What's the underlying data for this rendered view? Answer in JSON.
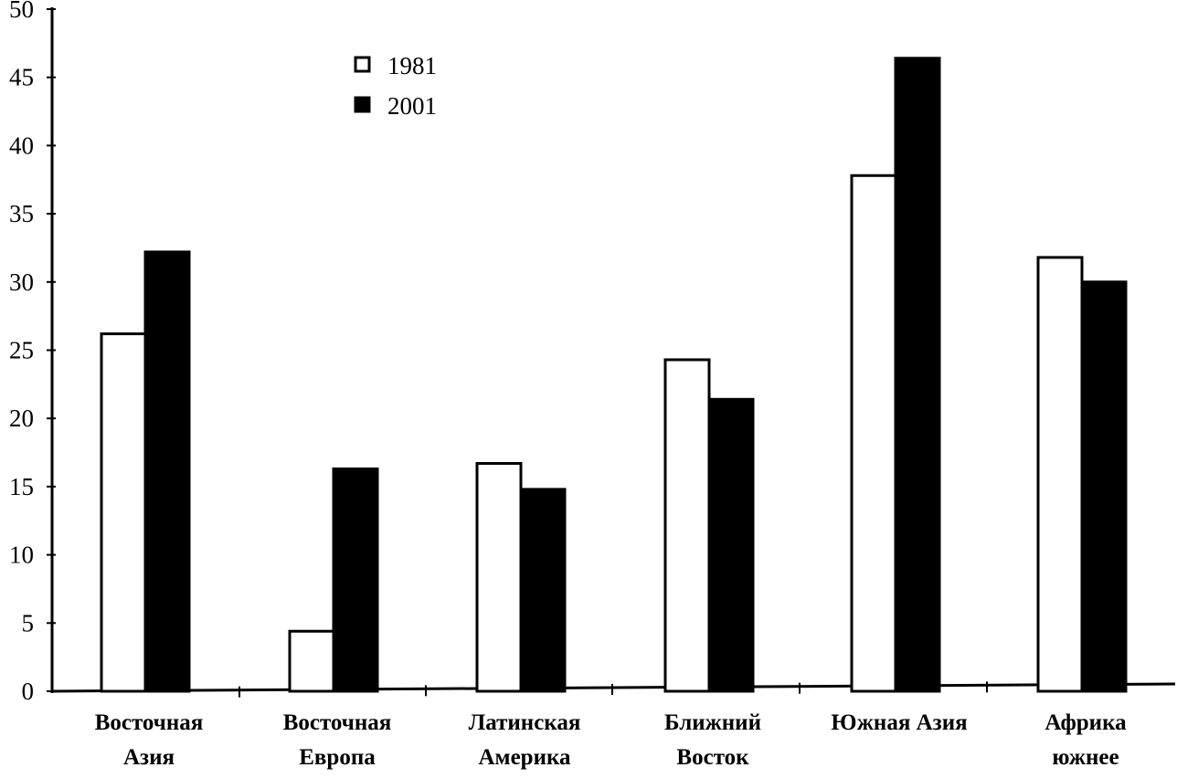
{
  "chart_data": {
    "type": "bar",
    "title": "",
    "xlabel": "",
    "ylabel": "",
    "ylim": [
      0,
      50
    ],
    "yticks": [
      "0",
      "5",
      "10",
      "15",
      "20",
      "25",
      "30",
      "35",
      "40",
      "45",
      "50"
    ],
    "categories": [
      [
        "Восточная",
        "Азия"
      ],
      [
        "Восточная",
        "Европа"
      ],
      [
        "Латинская",
        "Америка"
      ],
      [
        "Ближний",
        "Восток"
      ],
      [
        "Южная Азия"
      ],
      [
        "Африка",
        "южнее"
      ]
    ],
    "series": [
      {
        "name": "1981",
        "fill": "#ffffff",
        "values": [
          26.2,
          4.4,
          16.7,
          24.3,
          37.8,
          31.8
        ]
      },
      {
        "name": "2001",
        "fill": "#000000",
        "values": [
          32.2,
          16.3,
          14.8,
          21.4,
          46.4,
          30.0
        ]
      }
    ],
    "legend": {
      "position": "top-left-inside"
    },
    "grid": false
  }
}
